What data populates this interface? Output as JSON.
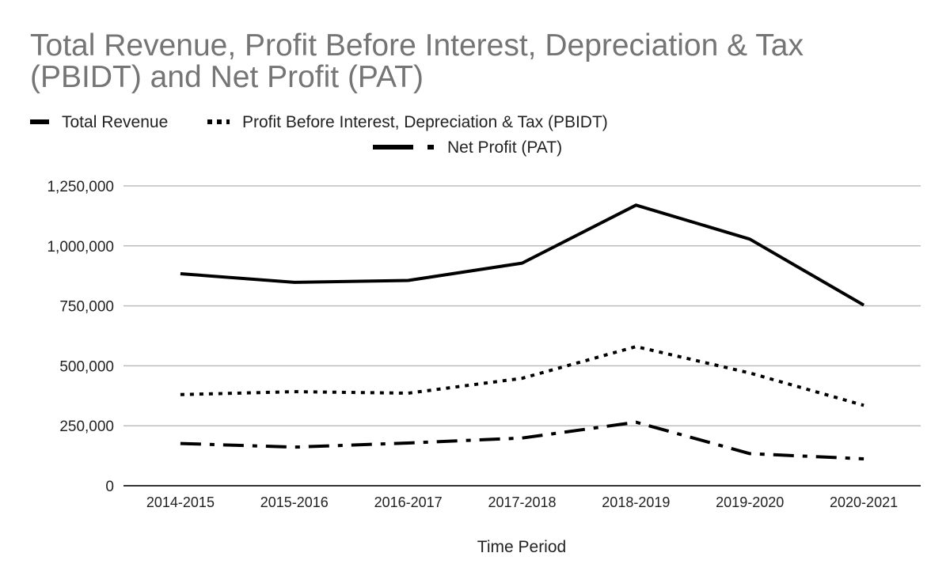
{
  "chart_data": {
    "type": "line",
    "title_lines": [
      "Total Revenue, Profit Before Interest, Depreciation & Tax",
      "(PBIDT) and Net Profit (PAT)"
    ],
    "xlabel": "Time Period",
    "ylabel": "",
    "categories": [
      "2014-2015",
      "2015-2016",
      "2016-2017",
      "2017-2018",
      "2018-2019",
      "2019-2020",
      "2020-2021"
    ],
    "ylim": [
      0,
      1250000
    ],
    "yticks": [
      0,
      250000,
      500000,
      750000,
      1000000,
      1250000
    ],
    "ytick_labels": [
      "0",
      "250,000",
      "500,000",
      "750,000",
      "1,000,000",
      "1,250,000"
    ],
    "grid": true,
    "legend_position": "top",
    "series": [
      {
        "name": "Total Revenue",
        "style": "solid",
        "values": [
          884000,
          848000,
          856000,
          928000,
          1170000,
          1028000,
          753000
        ]
      },
      {
        "name": "Profit Before Interest, Depreciation & Tax (PBIDT)",
        "style": "dotted",
        "values": [
          380000,
          392000,
          386000,
          448000,
          580000,
          470000,
          335000
        ]
      },
      {
        "name": "Net Profit (PAT)",
        "style": "dash-dot",
        "values": [
          176000,
          161000,
          178000,
          199000,
          265000,
          134000,
          112000
        ]
      }
    ],
    "colors": {
      "line": "#000000",
      "title": "#757575",
      "grid": "#bdbdbd"
    }
  }
}
